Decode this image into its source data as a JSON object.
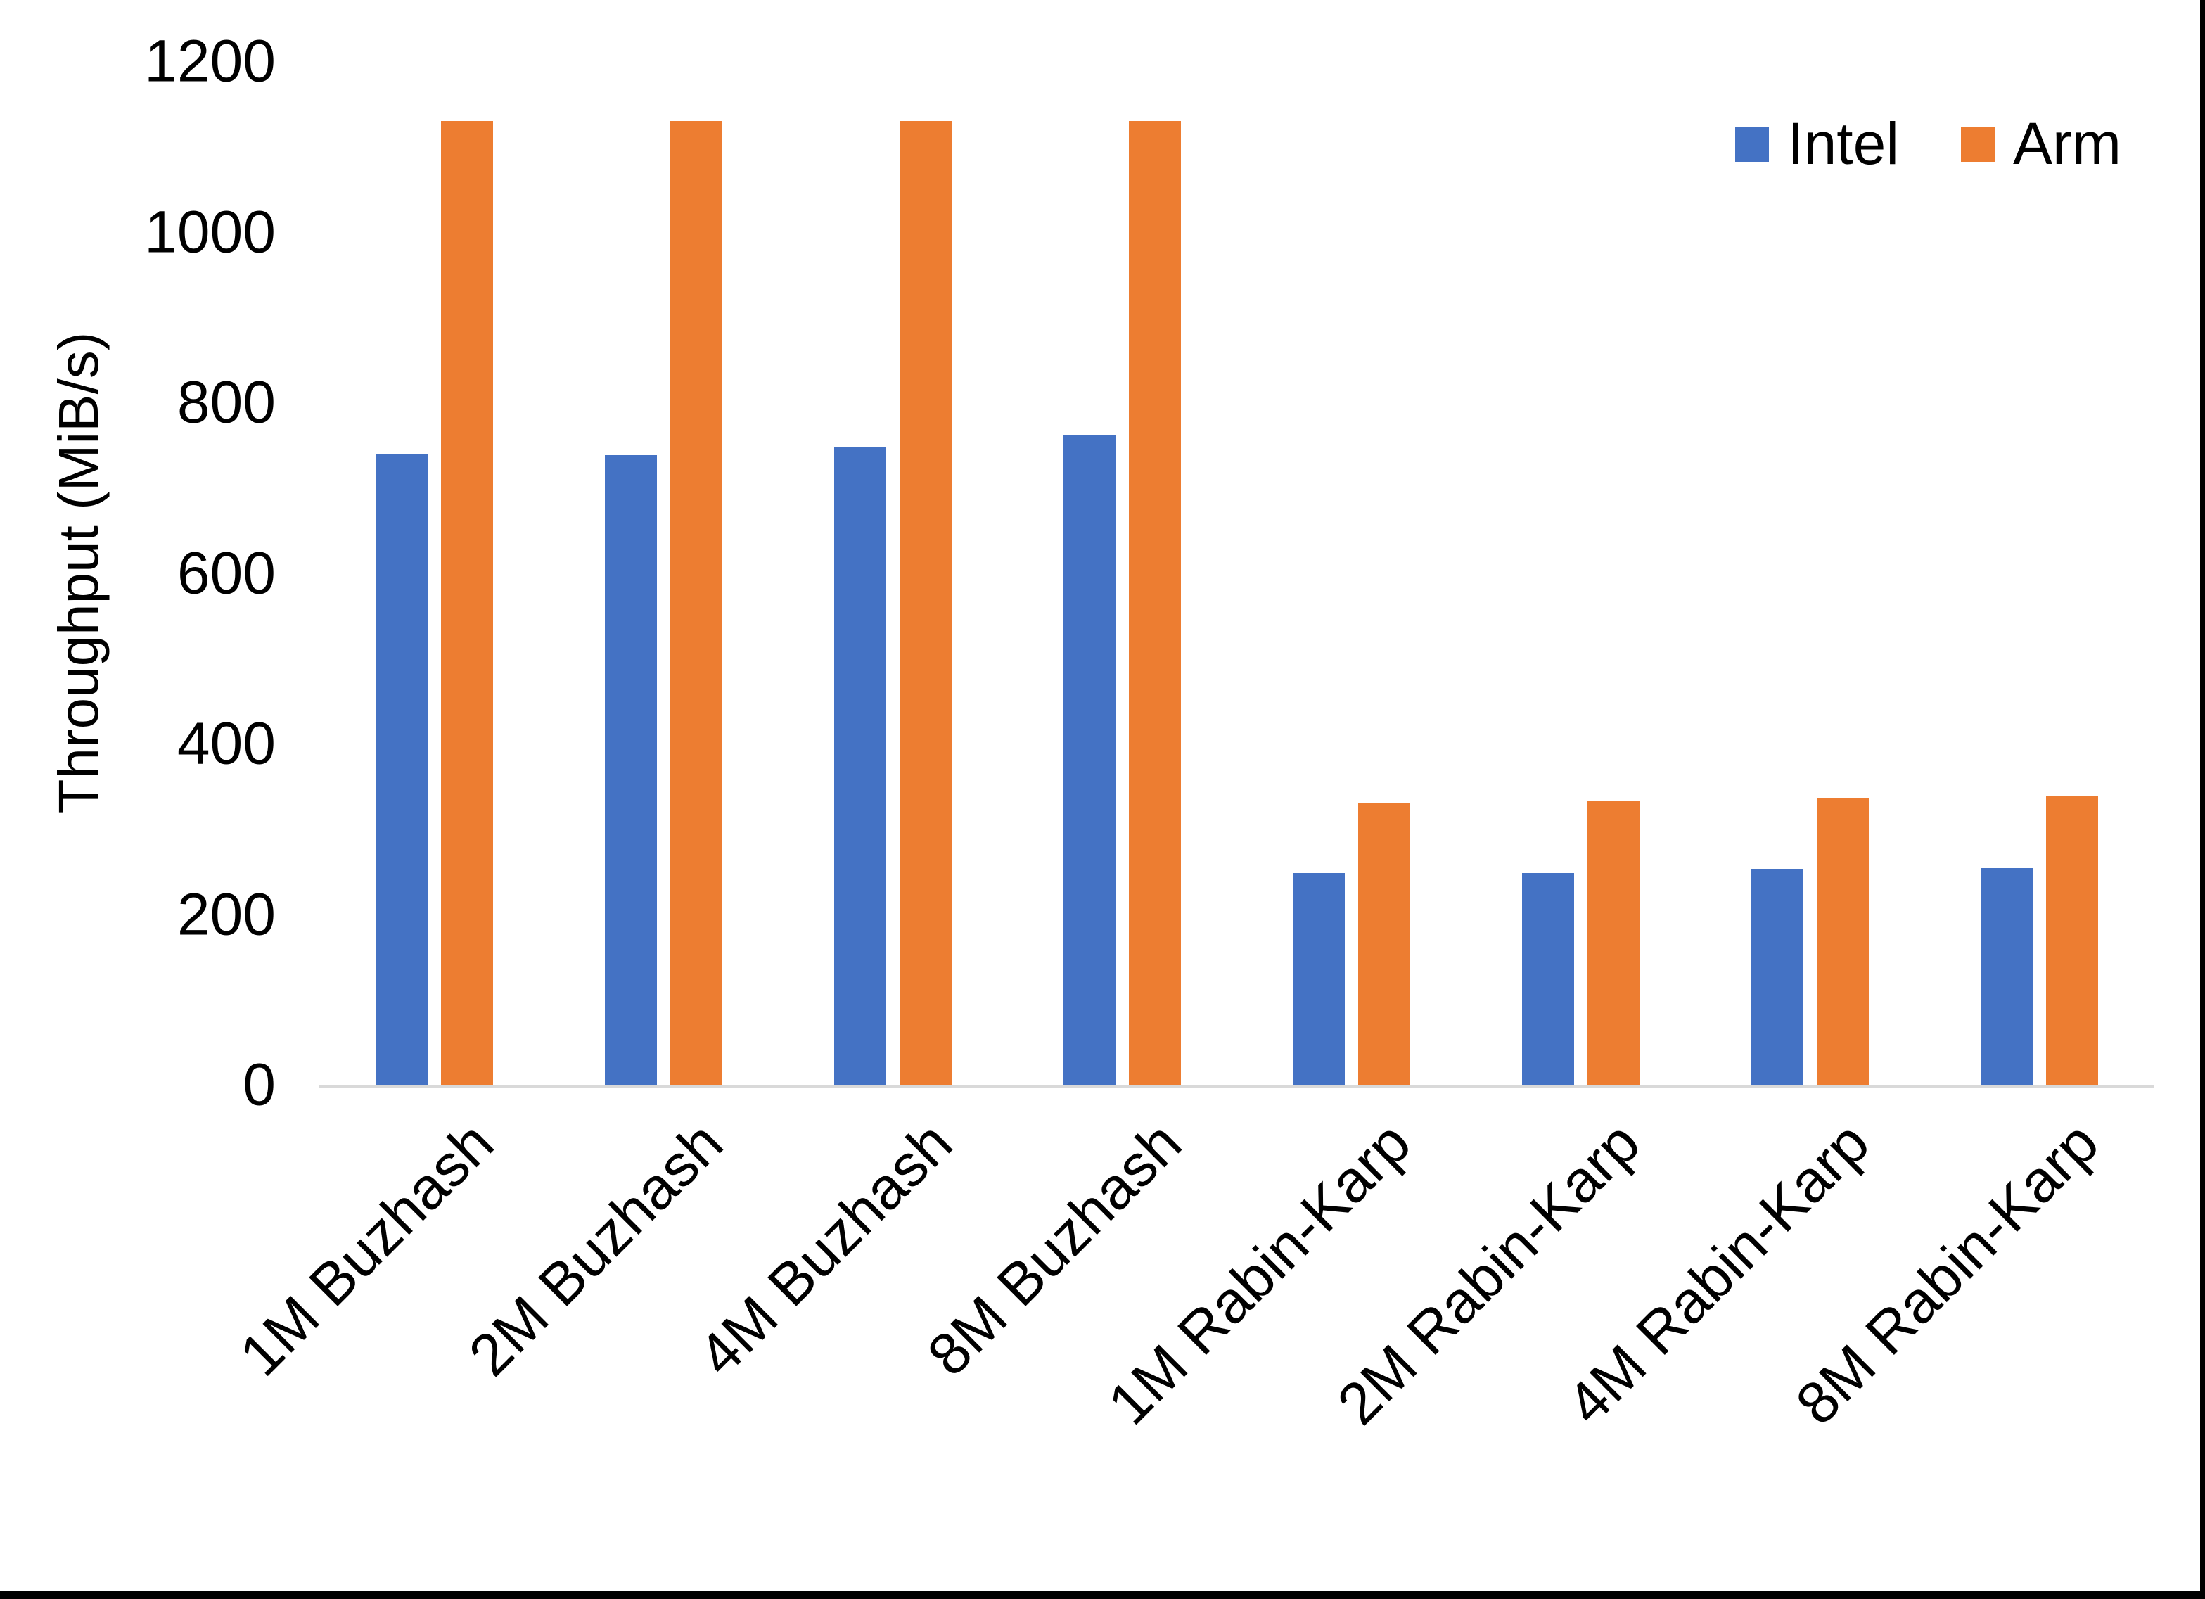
{
  "chart_data": {
    "type": "bar",
    "title": "",
    "xlabel": "",
    "ylabel": "Throughput (MiB/s)",
    "ylim": [
      0,
      1200
    ],
    "yticks": [
      0,
      200,
      400,
      600,
      800,
      1000,
      1200
    ],
    "ytick_labels": [
      "0",
      "200",
      "400",
      "600",
      "800",
      "1000",
      "1200"
    ],
    "grid": false,
    "legend_position": "top-right",
    "categories": [
      "1M Buzhash",
      "2M Buzhash",
      "4M Buzhash",
      "8M Buzhash",
      "1M Rabin-Karp",
      "2M Rabin-Karp",
      "4M Rabin-Karp",
      "8M Rabin-Karp"
    ],
    "series": [
      {
        "name": "Intel",
        "color": "#4472C4",
        "values": [
          740,
          738,
          748,
          762,
          248,
          248,
          252,
          254
        ]
      },
      {
        "name": "Arm",
        "color": "#ED7D31",
        "values": [
          1130,
          1130,
          1130,
          1130,
          330,
          333,
          336,
          339
        ]
      }
    ]
  },
  "colors": {
    "intel": "#4472C4",
    "arm": "#ED7D31",
    "axis_line": "#d9d9d9",
    "text": "#000000",
    "background": "#ffffff",
    "border": "#000000"
  }
}
